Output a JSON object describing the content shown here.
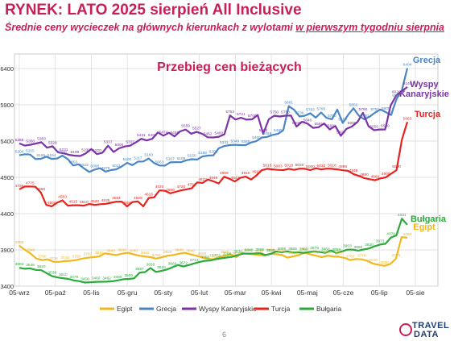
{
  "header": {
    "title": "RYNEK: LATO 2025 sierpień All Inclusive",
    "subtitle_main": "Średnie ceny wycieczek na głównych kierunkach z wylotami ",
    "subtitle_underlined": "w pierwszym tygodniu sierpnia"
  },
  "page_number": "6",
  "logo": {
    "line1": "TRAVEL",
    "line2": "DATA"
  },
  "colors": {
    "Egipt": "#F2B71F",
    "Grecja": "#4A86C6",
    "Wyspy Kanaryjskie": "#7B33A6",
    "Turcja": "#E8231F",
    "Bułgaria": "#2AAA3A",
    "accent": "#C81E5A"
  },
  "chart_data": {
    "type": "line",
    "title": "Przebieg cen bieżących",
    "x_ticks": [
      "05-wrz",
      "05-paź",
      "05-lis",
      "05-gru",
      "05-sty",
      "05-lut",
      "05-mar",
      "05-kwi",
      "05-maj",
      "05-cze",
      "05-lip",
      "05-sie"
    ],
    "y_ticks": [
      3400,
      3900,
      4400,
      4900,
      5400,
      5900,
      6400
    ],
    "ylim": [
      3400,
      6600
    ],
    "grid": true,
    "legend_position": "bottom",
    "series": [
      {
        "name": "Egipt",
        "label": "Egipt",
        "values": [
          3958,
          3900,
          3848,
          3780,
          3760,
          3770,
          3736,
          3736,
          3745,
          3750,
          3760,
          3780,
          3792,
          3800,
          3810,
          3852,
          3840,
          3830,
          3848,
          3860,
          3840,
          3820,
          3810,
          3800,
          3780,
          3800,
          3820,
          3830,
          3848,
          3860,
          3840,
          3820,
          3800,
          3780,
          3770,
          3800,
          3820,
          3840,
          3800,
          3860,
          3846,
          3840,
          3830,
          3820,
          3850,
          3840,
          3830,
          3793,
          3810,
          3830,
          3860,
          3840,
          3820,
          3800,
          3820,
          3810,
          3807,
          3790,
          3760,
          3774,
          3770,
          3749,
          3710,
          3695,
          3680,
          3706,
          3779,
          4077,
          4068
        ]
      },
      {
        "name": "Grecja",
        "label": "Grecja",
        "values": [
          5204,
          5219,
          5215,
          5152,
          5155,
          5186,
          5154,
          5160,
          5200,
          5151,
          5063,
          5080,
          5023,
          4975,
          5008,
          5026,
          4979,
          5000,
          5011,
          5050,
          5100,
          5069,
          5117,
          5119,
          5160,
          5098,
          5063,
          5061,
          5107,
          5110,
          5109,
          5135,
          5150,
          5146,
          5188,
          5200,
          5203,
          5300,
          5331,
          5345,
          5349,
          5345,
          5345,
          5380,
          5400,
          5449,
          5458,
          5484,
          5499,
          5552,
          5881,
          5831,
          5739,
          5750,
          5783,
          5723,
          5795,
          5720,
          5700,
          5834,
          5650,
          5760,
          5852,
          5750,
          5700,
          5736,
          5791,
          5836,
          5800,
          5760,
          5980,
          6103,
          6404
        ]
      },
      {
        "name": "Wyspy Kanaryjskie",
        "label": "Wyspy Kanaryjskie",
        "values": [
          5368,
          5338,
          5350,
          5367,
          5383,
          5309,
          5328,
          5245,
          5231,
          5210,
          5199,
          5194,
          5230,
          5290,
          5220,
          5240,
          5337,
          5250,
          5300,
          5326,
          5337,
          5381,
          5431,
          5409,
          5433,
          5519,
          5474,
          5514,
          5465,
          5533,
          5559,
          5501,
          5527,
          5500,
          5452,
          5450,
          5460,
          5493,
          5753,
          5697,
          5721,
          5696,
          5700,
          5759,
          5500,
          5700,
          5750,
          5739,
          5750,
          5752,
          5600,
          5667,
          5640,
          5582,
          5591,
          5643,
          5560,
          5609,
          5473,
          5568,
          5600,
          5662,
          5790,
          5604,
          5550,
          5560,
          5560,
          5890,
          6028,
          6088,
          6146
        ]
      },
      {
        "name": "Turcja",
        "label": "Turcja",
        "values": [
          4736,
          4773,
          4775,
          4770,
          4690,
          4520,
          4500,
          4550,
          4583,
          4510,
          4515,
          4515,
          4510,
          4533,
          4520,
          4530,
          4535,
          4550,
          4564,
          4565,
          4500,
          4560,
          4569,
          4500,
          4616,
          4625,
          4720,
          4716,
          4680,
          4700,
          4720,
          4735,
          4750,
          4830,
          4823,
          4870,
          4846,
          4815,
          4909,
          4880,
          4843,
          4893,
          4910,
          4870,
          4927,
          4999,
          5018,
          5010,
          5003,
          5000,
          5018,
          5003,
          5020,
          5018,
          5000,
          5025,
          5010,
          5020,
          5018,
          5010,
          4998,
          4990,
          4946,
          4920,
          4890,
          4875,
          4860,
          4885,
          4900,
          4950,
          5000,
          5421,
          5663
        ]
      },
      {
        "name": "Bułgaria",
        "label": "Bułgaria",
        "values": [
          3653,
          3640,
          3646,
          3625,
          3620,
          3580,
          3538,
          3520,
          3510,
          3500,
          3479,
          3469,
          3450,
          3455,
          3460,
          3461,
          3462,
          3468,
          3480,
          3495,
          3500,
          3508,
          3587,
          3594,
          3650,
          3597,
          3610,
          3630,
          3660,
          3692,
          3672,
          3691,
          3713,
          3735,
          3750,
          3754,
          3773,
          3784,
          3796,
          3806,
          3830,
          3849,
          3849,
          3850,
          3856,
          3830,
          3845,
          3878,
          3866,
          3880,
          3865,
          3867,
          3860,
          3870,
          3879,
          3870,
          3860,
          3891,
          3858,
          3878,
          3903,
          3905,
          3890,
          3906,
          3920,
          3950,
          3973,
          3984,
          4070,
          4100,
          4331,
          4248
        ]
      }
    ]
  }
}
